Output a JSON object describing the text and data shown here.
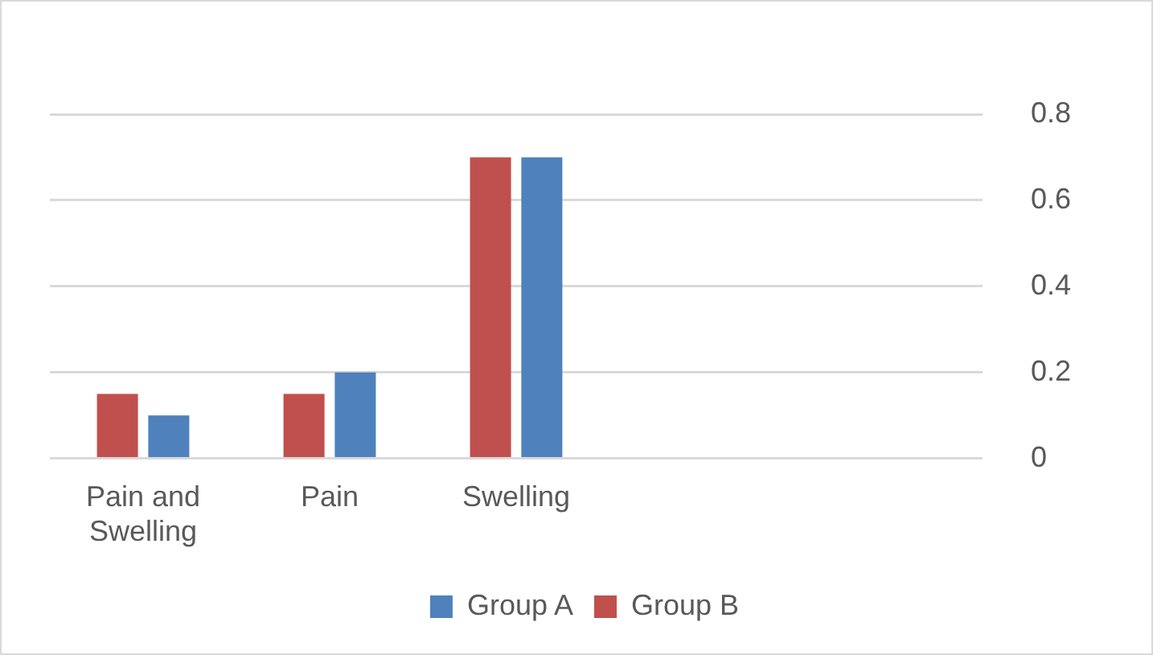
{
  "chart_data": {
    "type": "bar",
    "categories": [
      "Pain and Swelling",
      "Pain",
      "Swelling",
      null,
      null
    ],
    "series": [
      {
        "name": "Group B",
        "color": "#c0504d",
        "values": [
          0.15,
          0.15,
          0.7,
          null,
          null
        ]
      },
      {
        "name": "Group A",
        "color": "#4f81bd",
        "values": [
          0.1,
          0.2,
          0.7,
          null,
          null
        ]
      }
    ],
    "ylim": [
      0,
      0.8
    ],
    "yticks": [
      0,
      0.2,
      0.4,
      0.6,
      0.8
    ],
    "grid": "y",
    "legend": "bottom"
  }
}
